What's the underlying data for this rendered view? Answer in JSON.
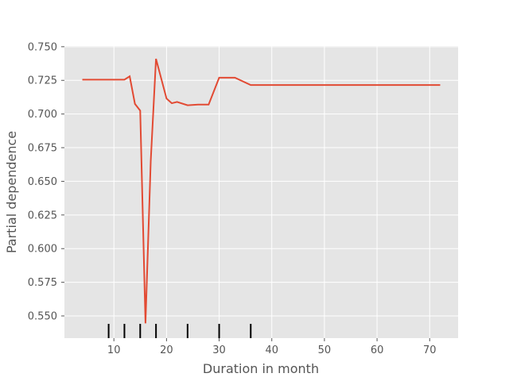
{
  "chart_data": {
    "type": "line",
    "xlabel": "Duration in month",
    "ylabel": "Partial dependence",
    "xlim": [
      0.6,
      75.4
    ],
    "ylim": [
      0.5335,
      0.7505
    ],
    "grid": true,
    "background": "#e5e5e5",
    "line_color": "#e24a33",
    "rug_color": "#000000",
    "xticks": [
      10,
      20,
      30,
      40,
      50,
      60,
      70
    ],
    "yticks": [
      0.55,
      0.575,
      0.6,
      0.625,
      0.65,
      0.675,
      0.7,
      0.725,
      0.75
    ],
    "x": [
      4,
      6,
      8,
      10,
      12,
      13,
      14,
      15,
      16,
      17,
      18,
      20,
      21,
      22,
      24,
      26,
      28,
      30,
      33,
      36,
      40,
      45,
      50,
      60,
      72
    ],
    "y": [
      0.7255,
      0.7255,
      0.7255,
      0.7255,
      0.7255,
      0.728,
      0.7075,
      0.7025,
      0.5445,
      0.665,
      0.741,
      0.7115,
      0.708,
      0.709,
      0.7065,
      0.707,
      0.707,
      0.727,
      0.727,
      0.7215,
      0.7215,
      0.7215,
      0.7215,
      0.7215,
      0.7215
    ],
    "rug_x": [
      9,
      12,
      15,
      18,
      24,
      30,
      36
    ]
  }
}
